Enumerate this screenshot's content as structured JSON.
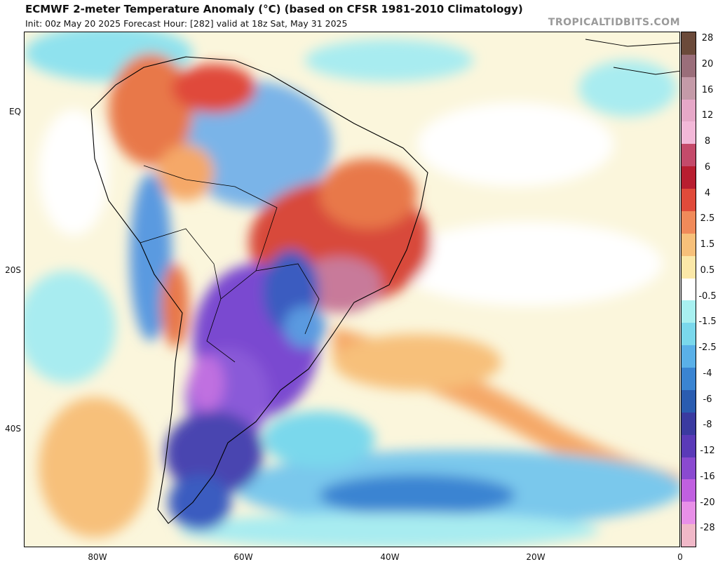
{
  "header": {
    "title": "ECMWF 2-meter Temperature Anomaly (°C) (based on CFSR 1981-2010 Climatology)",
    "subtitle": "Init: 00z May 20 2025   Forecast Hour: [282]   valid at 18z Sat, May 31 2025",
    "brand": "TROPICALTIDBITS.COM"
  },
  "map": {
    "lat_labels": [
      "EQ",
      "20S",
      "40S"
    ],
    "lon_labels": [
      "80W",
      "60W",
      "40W",
      "20W",
      "0"
    ]
  },
  "colorbar": {
    "labels": [
      "28",
      "20",
      "16",
      "12",
      "8",
      "6",
      "4",
      "2.5",
      "1.5",
      "0.5",
      "-0.5",
      "-1.5",
      "-2.5",
      "-4",
      "-6",
      "-8",
      "-12",
      "-16",
      "-20",
      "-28"
    ],
    "colors": [
      "#6b4a3a",
      "#9a6e7a",
      "#c49aa8",
      "#e6a8c8",
      "#f2b8d8",
      "#c44a6a",
      "#b81e30",
      "#e04a3a",
      "#f08a5a",
      "#f7c07a",
      "#fbe8a8",
      "#ffffff",
      "#a8f0f0",
      "#7ad8ec",
      "#5ab0e8",
      "#3a84d2",
      "#2a5cb0",
      "#3a3aa0",
      "#5a3ab8",
      "#8a4ad0",
      "#c060e0",
      "#e890e8",
      "#f0b8c8"
    ]
  }
}
